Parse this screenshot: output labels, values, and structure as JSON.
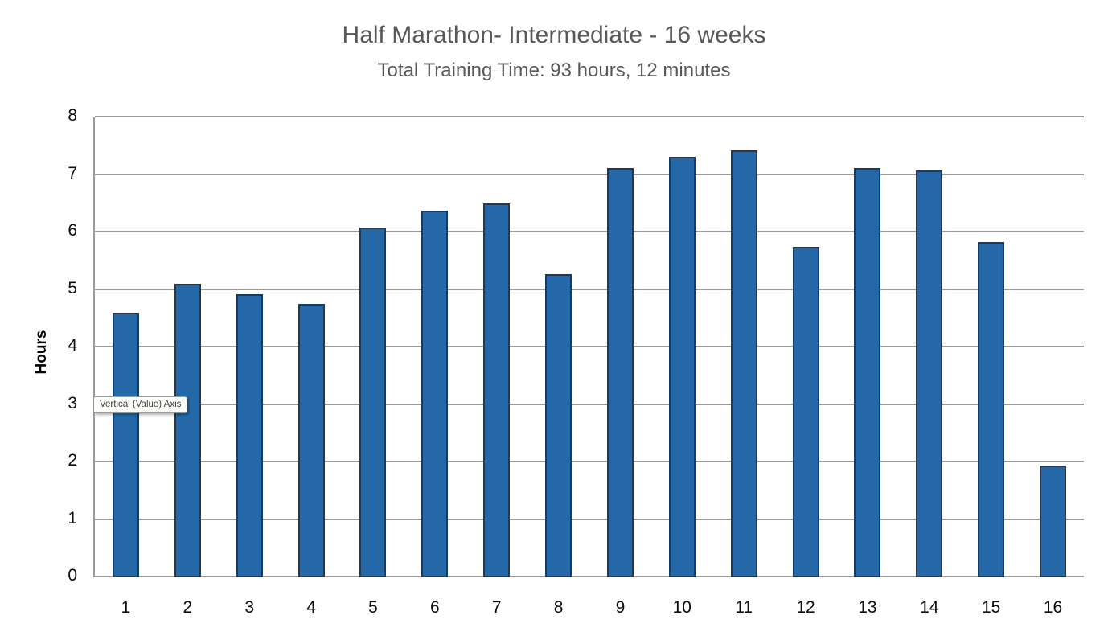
{
  "chart_data": {
    "type": "bar",
    "title": "Half Marathon- Intermediate - 16 weeks",
    "subtitle": "Total Training Time: 93 hours, 12 minutes",
    "categories": [
      "1",
      "2",
      "3",
      "4",
      "5",
      "6",
      "7",
      "8",
      "9",
      "10",
      "11",
      "12",
      "13",
      "14",
      "15",
      "16"
    ],
    "values": [
      4.6,
      5.1,
      4.92,
      4.75,
      6.08,
      6.38,
      6.5,
      5.27,
      7.12,
      7.32,
      7.43,
      5.75,
      7.12,
      7.08,
      5.83,
      1.95
    ],
    "xlabel": "",
    "ylabel": "Hours",
    "ylim": [
      0,
      8
    ],
    "ytick_step": 1,
    "yticks": [
      "0",
      "1",
      "2",
      "3",
      "4",
      "5",
      "6",
      "7",
      "8"
    ],
    "grid": true,
    "legend": false
  },
  "tooltip": {
    "text": "Vertical (Value) Axis"
  },
  "colors": {
    "bar_fill": "#2468A7",
    "bar_border": "#1B3A5C",
    "gridline": "#9B9B9B",
    "axis_line": "#9B9B9B",
    "title_text": "#595959",
    "tick_text": "#0D0D0D",
    "tooltip_bg": "#FDFDFA",
    "tooltip_border": "#99999A",
    "tooltip_text": "#3F3F3F"
  }
}
